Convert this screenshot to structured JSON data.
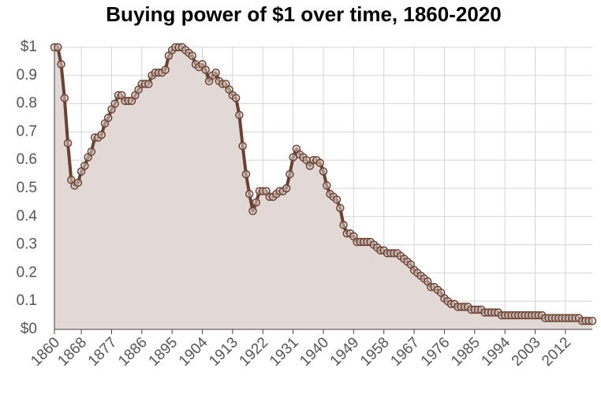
{
  "chart_data": {
    "type": "area",
    "title": "Buying power of $1 over time, 1860-2020",
    "x": [
      1860,
      1861,
      1862,
      1863,
      1864,
      1865,
      1866,
      1867,
      1868,
      1869,
      1870,
      1871,
      1872,
      1873,
      1874,
      1875,
      1876,
      1877,
      1878,
      1879,
      1880,
      1881,
      1882,
      1883,
      1884,
      1885,
      1886,
      1887,
      1888,
      1889,
      1890,
      1891,
      1892,
      1893,
      1894,
      1895,
      1896,
      1897,
      1898,
      1899,
      1900,
      1901,
      1902,
      1903,
      1904,
      1905,
      1906,
      1907,
      1908,
      1909,
      1910,
      1911,
      1912,
      1913,
      1914,
      1915,
      1916,
      1917,
      1918,
      1919,
      1920,
      1921,
      1922,
      1923,
      1924,
      1925,
      1926,
      1927,
      1928,
      1929,
      1930,
      1931,
      1932,
      1933,
      1934,
      1935,
      1936,
      1937,
      1938,
      1939,
      1940,
      1941,
      1942,
      1943,
      1944,
      1945,
      1946,
      1947,
      1948,
      1949,
      1950,
      1951,
      1952,
      1953,
      1954,
      1955,
      1956,
      1957,
      1958,
      1959,
      1960,
      1961,
      1962,
      1963,
      1964,
      1965,
      1966,
      1967,
      1968,
      1969,
      1970,
      1971,
      1972,
      1973,
      1974,
      1975,
      1976,
      1977,
      1978,
      1979,
      1980,
      1981,
      1982,
      1983,
      1984,
      1985,
      1986,
      1987,
      1988,
      1989,
      1990,
      1991,
      1992,
      1993,
      1994,
      1995,
      1996,
      1997,
      1998,
      1999,
      2000,
      2001,
      2002,
      2003,
      2004,
      2005,
      2006,
      2007,
      2008,
      2009,
      2010,
      2011,
      2012,
      2013,
      2014,
      2015,
      2016,
      2017,
      2018,
      2019,
      2020
    ],
    "values": [
      1.0,
      1.0,
      0.94,
      0.82,
      0.66,
      0.53,
      0.51,
      0.52,
      0.56,
      0.58,
      0.61,
      0.63,
      0.68,
      0.68,
      0.69,
      0.73,
      0.75,
      0.78,
      0.8,
      0.83,
      0.83,
      0.81,
      0.81,
      0.81,
      0.83,
      0.85,
      0.87,
      0.87,
      0.87,
      0.9,
      0.91,
      0.91,
      0.91,
      0.92,
      0.97,
      0.99,
      1.0,
      1.0,
      1.0,
      0.99,
      0.98,
      0.97,
      0.94,
      0.93,
      0.94,
      0.92,
      0.88,
      0.9,
      0.91,
      0.88,
      0.87,
      0.87,
      0.85,
      0.83,
      0.82,
      0.76,
      0.65,
      0.55,
      0.48,
      0.42,
      0.45,
      0.49,
      0.49,
      0.49,
      0.47,
      0.47,
      0.48,
      0.49,
      0.49,
      0.5,
      0.55,
      0.61,
      0.64,
      0.62,
      0.61,
      0.6,
      0.58,
      0.6,
      0.6,
      0.59,
      0.56,
      0.51,
      0.48,
      0.47,
      0.46,
      0.43,
      0.37,
      0.34,
      0.34,
      0.33,
      0.31,
      0.31,
      0.31,
      0.31,
      0.31,
      0.3,
      0.29,
      0.28,
      0.28,
      0.27,
      0.27,
      0.27,
      0.27,
      0.26,
      0.25,
      0.24,
      0.23,
      0.21,
      0.2,
      0.19,
      0.18,
      0.17,
      0.15,
      0.15,
      0.14,
      0.13,
      0.11,
      0.1,
      0.09,
      0.09,
      0.08,
      0.08,
      0.08,
      0.08,
      0.07,
      0.07,
      0.07,
      0.07,
      0.06,
      0.06,
      0.06,
      0.06,
      0.06,
      0.05,
      0.05,
      0.05,
      0.05,
      0.05,
      0.05,
      0.05,
      0.05,
      0.05,
      0.05,
      0.05,
      0.05,
      0.05,
      0.04,
      0.04,
      0.04,
      0.04,
      0.04,
      0.04,
      0.04,
      0.04,
      0.04,
      0.04,
      0.04,
      0.03,
      0.03,
      0.03,
      0.03
    ],
    "color": "#6b4232",
    "fill": "#e2d8d5",
    "xlim": [
      1860,
      2020
    ],
    "xticks": [
      1860,
      1868,
      1877,
      1886,
      1895,
      1904,
      1913,
      1922,
      1931,
      1940,
      1949,
      1958,
      1967,
      1976,
      1985,
      1994,
      2003,
      2012
    ],
    "ylim": [
      0,
      1
    ],
    "yticks": [
      {
        "value": 0,
        "label": "$0"
      },
      0.1,
      0.2,
      0.3,
      0.4,
      0.5,
      0.6,
      0.7,
      0.8,
      0.9,
      {
        "value": 1,
        "label": "$1"
      }
    ],
    "grid": true
  }
}
